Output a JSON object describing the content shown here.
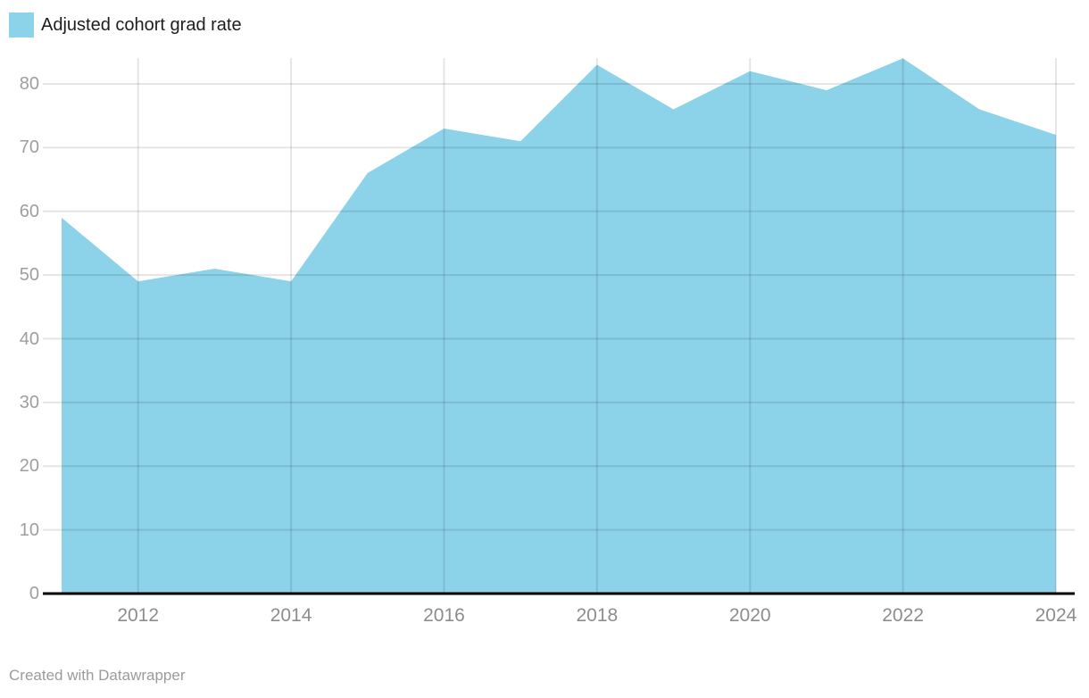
{
  "legend": {
    "label": "Adjusted cohort grad rate"
  },
  "footer": {
    "text": "Created with Datawrapper"
  },
  "chart_data": {
    "type": "area",
    "title": "",
    "xlabel": "",
    "ylabel": "",
    "x": [
      2011,
      2012,
      2013,
      2014,
      2015,
      2016,
      2017,
      2018,
      2019,
      2020,
      2021,
      2022,
      2023,
      2024
    ],
    "series": [
      {
        "name": "Adjusted cohort grad rate",
        "values": [
          59,
          49,
          51,
          49,
          66,
          73,
          71,
          83,
          76,
          82,
          79,
          84,
          76,
          72
        ]
      }
    ],
    "ylim": [
      0,
      85
    ],
    "y_ticks": [
      0,
      10,
      20,
      30,
      40,
      50,
      60,
      70,
      80
    ],
    "x_tick_years": [
      2012,
      2014,
      2016,
      2018,
      2020,
      2022,
      2024
    ],
    "grid": true,
    "legend_position": "top-left",
    "colors": {
      "area": "#8cd2e8",
      "gridline": "rgba(0,0,0,0.10)",
      "axis_line": "#000000",
      "y_tick_label": "#9e9e9e",
      "x_tick_label": "#8d8d8d",
      "legend_text": "#1d1d1d",
      "footer_text": "#9b9b9b"
    }
  }
}
